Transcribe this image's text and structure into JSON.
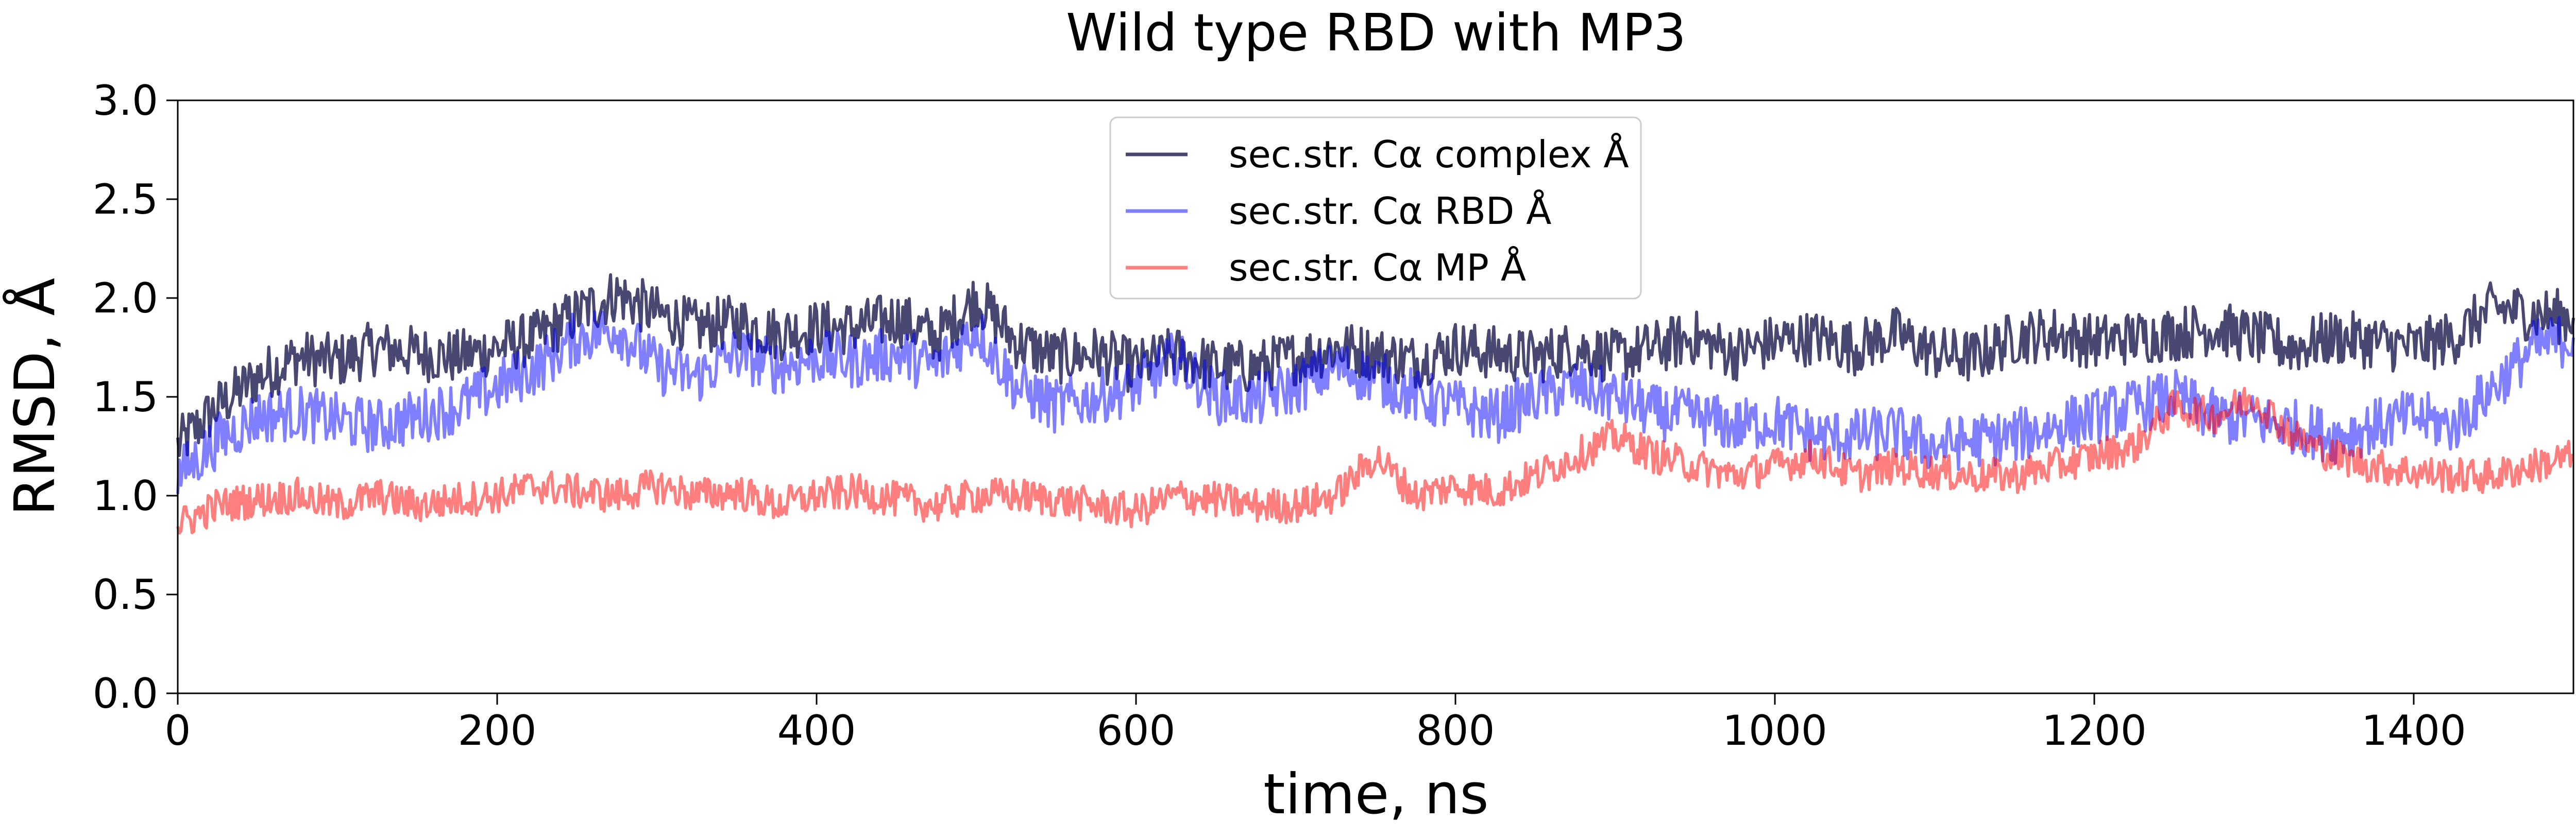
{
  "chart_data": {
    "type": "line",
    "title": "Wild type RBD with MP3",
    "xlabel": "time, ns",
    "ylabel": "RMSD, Å",
    "xlim": [
      0,
      1500
    ],
    "ylim": [
      0,
      3.0
    ],
    "xticks": [
      "0",
      "200",
      "400",
      "600",
      "800",
      "1000",
      "1200",
      "1400"
    ],
    "yticks": [
      "0.0",
      "0.5",
      "1.0",
      "1.5",
      "2.0",
      "2.5",
      "3.0"
    ],
    "grid": false,
    "legend_position": "top-center",
    "series": [
      {
        "name": "sec.str. Cα complex Å",
        "color": "#1a1a50",
        "opacity": 0.8,
        "x": [
          0,
          25,
          50,
          75,
          100,
          125,
          150,
          175,
          200,
          225,
          250,
          275,
          300,
          325,
          350,
          375,
          400,
          425,
          450,
          475,
          500,
          525,
          550,
          575,
          600,
          625,
          650,
          675,
          700,
          725,
          750,
          775,
          800,
          825,
          850,
          875,
          900,
          925,
          950,
          975,
          1000,
          1025,
          1050,
          1075,
          1100,
          1125,
          1150,
          1175,
          1200,
          1225,
          1250,
          1275,
          1300,
          1325,
          1350,
          1375,
          1400,
          1425,
          1450,
          1475,
          1500
        ],
        "y": [
          1.25,
          1.45,
          1.6,
          1.7,
          1.68,
          1.75,
          1.72,
          1.7,
          1.75,
          1.8,
          1.92,
          2.02,
          1.92,
          1.85,
          1.88,
          1.82,
          1.85,
          1.85,
          1.9,
          1.8,
          2.0,
          1.78,
          1.7,
          1.72,
          1.65,
          1.72,
          1.65,
          1.65,
          1.7,
          1.75,
          1.72,
          1.68,
          1.75,
          1.72,
          1.7,
          1.75,
          1.7,
          1.75,
          1.8,
          1.72,
          1.78,
          1.8,
          1.75,
          1.82,
          1.72,
          1.7,
          1.8,
          1.82,
          1.78,
          1.8,
          1.82,
          1.85,
          1.8,
          1.75,
          1.8,
          1.78,
          1.75,
          1.8,
          1.95,
          1.92,
          1.9
        ]
      },
      {
        "name": "sec.str. Cα RBD Å",
        "color": "#0000ff",
        "opacity": 0.5,
        "x": [
          0,
          25,
          50,
          75,
          100,
          125,
          150,
          175,
          200,
          225,
          250,
          275,
          300,
          325,
          350,
          375,
          400,
          425,
          450,
          475,
          500,
          525,
          550,
          575,
          600,
          625,
          650,
          675,
          700,
          725,
          750,
          775,
          800,
          825,
          850,
          875,
          900,
          925,
          950,
          975,
          1000,
          1025,
          1050,
          1075,
          1100,
          1125,
          1150,
          1175,
          1200,
          1225,
          1250,
          1275,
          1300,
          1325,
          1350,
          1375,
          1400,
          1425,
          1450,
          1475,
          1500
        ],
        "y": [
          1.1,
          1.28,
          1.4,
          1.42,
          1.38,
          1.35,
          1.4,
          1.45,
          1.55,
          1.65,
          1.8,
          1.85,
          1.65,
          1.6,
          1.72,
          1.65,
          1.7,
          1.68,
          1.72,
          1.65,
          1.85,
          1.55,
          1.45,
          1.5,
          1.55,
          1.7,
          1.5,
          1.48,
          1.55,
          1.65,
          1.6,
          1.5,
          1.45,
          1.4,
          1.5,
          1.55,
          1.5,
          1.42,
          1.4,
          1.35,
          1.38,
          1.3,
          1.3,
          1.32,
          1.25,
          1.28,
          1.3,
          1.35,
          1.4,
          1.45,
          1.5,
          1.4,
          1.38,
          1.35,
          1.3,
          1.35,
          1.4,
          1.35,
          1.55,
          1.75,
          1.8
        ]
      },
      {
        "name": "sec.str. Cα MP Å",
        "color": "#ff0000",
        "opacity": 0.5,
        "x": [
          0,
          25,
          50,
          75,
          100,
          125,
          150,
          175,
          200,
          225,
          250,
          275,
          300,
          325,
          350,
          375,
          400,
          425,
          450,
          475,
          500,
          525,
          550,
          575,
          600,
          625,
          650,
          675,
          700,
          725,
          750,
          775,
          800,
          825,
          850,
          875,
          900,
          925,
          950,
          975,
          1000,
          1025,
          1050,
          1075,
          1100,
          1125,
          1150,
          1175,
          1200,
          1225,
          1250,
          1275,
          1300,
          1325,
          1350,
          1375,
          1400,
          1425,
          1450,
          1475,
          1500
        ],
        "y": [
          0.85,
          0.95,
          0.98,
          1.0,
          0.95,
          1.0,
          0.95,
          0.98,
          1.0,
          1.05,
          1.02,
          1.0,
          1.05,
          1.0,
          1.02,
          0.95,
          1.0,
          1.02,
          0.98,
          0.95,
          1.0,
          1.0,
          0.98,
          0.95,
          0.92,
          1.0,
          0.98,
          0.95,
          0.95,
          1.0,
          1.2,
          1.0,
          1.05,
          1.02,
          1.1,
          1.2,
          1.3,
          1.2,
          1.15,
          1.1,
          1.15,
          1.2,
          1.1,
          1.15,
          1.12,
          1.1,
          1.1,
          1.15,
          1.2,
          1.25,
          1.45,
          1.4,
          1.5,
          1.3,
          1.2,
          1.15,
          1.12,
          1.1,
          1.1,
          1.15,
          1.2
        ]
      }
    ]
  }
}
